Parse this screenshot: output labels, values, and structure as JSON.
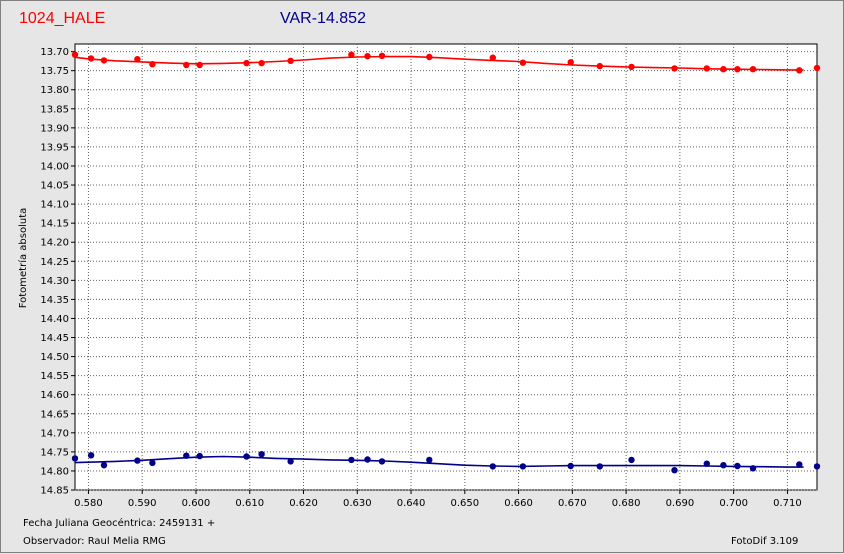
{
  "header": {
    "object_name": "1024_HALE",
    "var_label": "VAR-14.852"
  },
  "footer": {
    "date_label": "Fecha Juliana Geocéntrica: 2459131 +",
    "observer_label": "Observador: Raul Melia RMG",
    "software_label": "FotoDif 3.109"
  },
  "colors": {
    "series_red": "#ff0000",
    "series_blue": "#00008b",
    "grid": "#606060",
    "plot_bg": "#ffffff",
    "window_bg": "#e6e6e6"
  },
  "chart_data": {
    "type": "scatter",
    "title": "",
    "xlabel": "",
    "ylabel": "Fotometría absoluta",
    "xlim": [
      0.5775,
      0.7155
    ],
    "ylim": [
      13.68,
      14.85
    ],
    "y_inverted": true,
    "grid": true,
    "x_ticks": [
      "0.580",
      "0.590",
      "0.600",
      "0.610",
      "0.620",
      "0.630",
      "0.640",
      "0.650",
      "0.660",
      "0.670",
      "0.680",
      "0.690",
      "0.700",
      "0.710"
    ],
    "y_ticks": [
      "13.70",
      "13.75",
      "13.80",
      "13.85",
      "13.90",
      "13.95",
      "14.00",
      "14.05",
      "14.10",
      "14.15",
      "14.20",
      "14.25",
      "14.30",
      "14.35",
      "14.40",
      "14.45",
      "14.50",
      "14.55",
      "14.60",
      "14.65",
      "14.70",
      "14.75",
      "14.80",
      "14.85"
    ],
    "series": [
      {
        "color": "#ff0000",
        "points": [
          [
            0.5775,
            13.708
          ],
          [
            0.5805,
            13.718
          ],
          [
            0.5829,
            13.723
          ],
          [
            0.5891,
            13.72
          ],
          [
            0.5919,
            13.733
          ],
          [
            0.5982,
            13.735
          ],
          [
            0.6007,
            13.735
          ],
          [
            0.6094,
            13.73
          ],
          [
            0.6122,
            13.73
          ],
          [
            0.6176,
            13.724
          ],
          [
            0.6289,
            13.708
          ],
          [
            0.6319,
            13.712
          ],
          [
            0.6346,
            13.711
          ],
          [
            0.6434,
            13.714
          ],
          [
            0.6552,
            13.716
          ],
          [
            0.6608,
            13.729
          ],
          [
            0.6697,
            13.728
          ],
          [
            0.6751,
            13.738
          ],
          [
            0.681,
            13.74
          ],
          [
            0.689,
            13.744
          ],
          [
            0.695,
            13.744
          ],
          [
            0.6981,
            13.746
          ],
          [
            0.7007,
            13.746
          ],
          [
            0.7036,
            13.746
          ],
          [
            0.7122,
            13.749
          ],
          [
            0.7155,
            13.743
          ]
        ],
        "trend": [
          [
            0.5775,
            13.715
          ],
          [
            0.5805,
            13.72
          ],
          [
            0.585,
            13.724
          ],
          [
            0.59,
            13.727
          ],
          [
            0.595,
            13.73
          ],
          [
            0.6,
            13.732
          ],
          [
            0.605,
            13.731
          ],
          [
            0.61,
            13.729
          ],
          [
            0.615,
            13.726
          ],
          [
            0.62,
            13.722
          ],
          [
            0.625,
            13.717
          ],
          [
            0.63,
            13.714
          ],
          [
            0.635,
            13.713
          ],
          [
            0.64,
            13.713
          ],
          [
            0.645,
            13.716
          ],
          [
            0.65,
            13.72
          ],
          [
            0.655,
            13.723
          ],
          [
            0.66,
            13.726
          ],
          [
            0.665,
            13.731
          ],
          [
            0.67,
            13.735
          ],
          [
            0.675,
            13.738
          ],
          [
            0.68,
            13.74
          ],
          [
            0.685,
            13.742
          ],
          [
            0.69,
            13.743
          ],
          [
            0.695,
            13.745
          ],
          [
            0.7,
            13.746
          ],
          [
            0.705,
            13.747
          ],
          [
            0.71,
            13.748
          ],
          [
            0.713,
            13.748
          ]
        ]
      },
      {
        "color": "#00008b",
        "points": [
          [
            0.5775,
            14.767
          ],
          [
            0.5805,
            14.759
          ],
          [
            0.5829,
            14.785
          ],
          [
            0.5891,
            14.773
          ],
          [
            0.5919,
            14.779
          ],
          [
            0.5982,
            14.76
          ],
          [
            0.6007,
            14.761
          ],
          [
            0.6094,
            14.762
          ],
          [
            0.6122,
            14.756
          ],
          [
            0.6176,
            14.775
          ],
          [
            0.6289,
            14.771
          ],
          [
            0.6319,
            14.77
          ],
          [
            0.6346,
            14.775
          ],
          [
            0.6434,
            14.771
          ],
          [
            0.6552,
            14.788
          ],
          [
            0.6608,
            14.788
          ],
          [
            0.6697,
            14.787
          ],
          [
            0.6751,
            14.788
          ],
          [
            0.681,
            14.771
          ],
          [
            0.689,
            14.798
          ],
          [
            0.695,
            14.781
          ],
          [
            0.6981,
            14.785
          ],
          [
            0.7007,
            14.787
          ],
          [
            0.7036,
            14.793
          ],
          [
            0.7122,
            14.783
          ],
          [
            0.7155,
            14.788
          ]
        ],
        "trend": [
          [
            0.5775,
            14.778
          ],
          [
            0.585,
            14.775
          ],
          [
            0.59,
            14.772
          ],
          [
            0.595,
            14.768
          ],
          [
            0.6,
            14.764
          ],
          [
            0.605,
            14.762
          ],
          [
            0.61,
            14.764
          ],
          [
            0.615,
            14.767
          ],
          [
            0.62,
            14.769
          ],
          [
            0.625,
            14.771
          ],
          [
            0.63,
            14.772
          ],
          [
            0.635,
            14.774
          ],
          [
            0.64,
            14.777
          ],
          [
            0.645,
            14.781
          ],
          [
            0.65,
            14.785
          ],
          [
            0.655,
            14.787
          ],
          [
            0.66,
            14.788
          ],
          [
            0.665,
            14.787
          ],
          [
            0.67,
            14.786
          ],
          [
            0.675,
            14.786
          ],
          [
            0.68,
            14.786
          ],
          [
            0.685,
            14.786
          ],
          [
            0.69,
            14.786
          ],
          [
            0.695,
            14.787
          ],
          [
            0.7,
            14.788
          ],
          [
            0.705,
            14.789
          ],
          [
            0.71,
            14.79
          ],
          [
            0.713,
            14.79
          ]
        ]
      }
    ]
  }
}
